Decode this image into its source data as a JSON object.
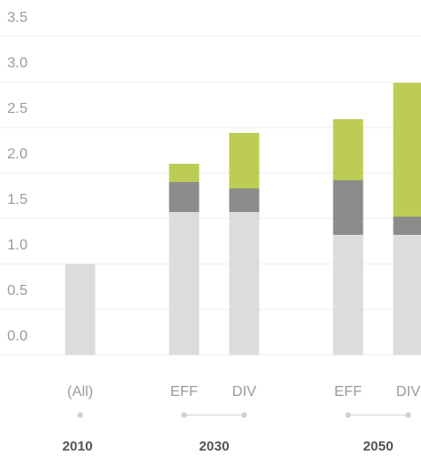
{
  "chart_data": {
    "type": "bar",
    "stacked": true,
    "categories": [
      "(All)",
      "EFF",
      "DIV",
      "EFF",
      "DIV"
    ],
    "groups": [
      "2010",
      "2030",
      "2050"
    ],
    "series": [
      {
        "color": "#dcdcdc",
        "values": [
          1.0,
          1.57,
          1.57,
          1.32,
          1.32
        ]
      },
      {
        "color": "#8c8c8c",
        "values": [
          null,
          0.33,
          0.26,
          0.6,
          0.2
        ]
      },
      {
        "color": "#bccc55",
        "values": [
          null,
          0.2,
          0.61,
          0.67,
          1.47
        ]
      }
    ],
    "ylim": [
      0,
      3.5
    ],
    "yticks": [
      {
        "value": 0,
        "label": "0.0"
      },
      0.5,
      {
        "value": 1,
        "label": "1.0"
      },
      1.5,
      {
        "value": 2,
        "label": "2.0"
      },
      2.5,
      {
        "value": 3,
        "label": "3.0"
      },
      3.5
    ],
    "grid": true
  }
}
